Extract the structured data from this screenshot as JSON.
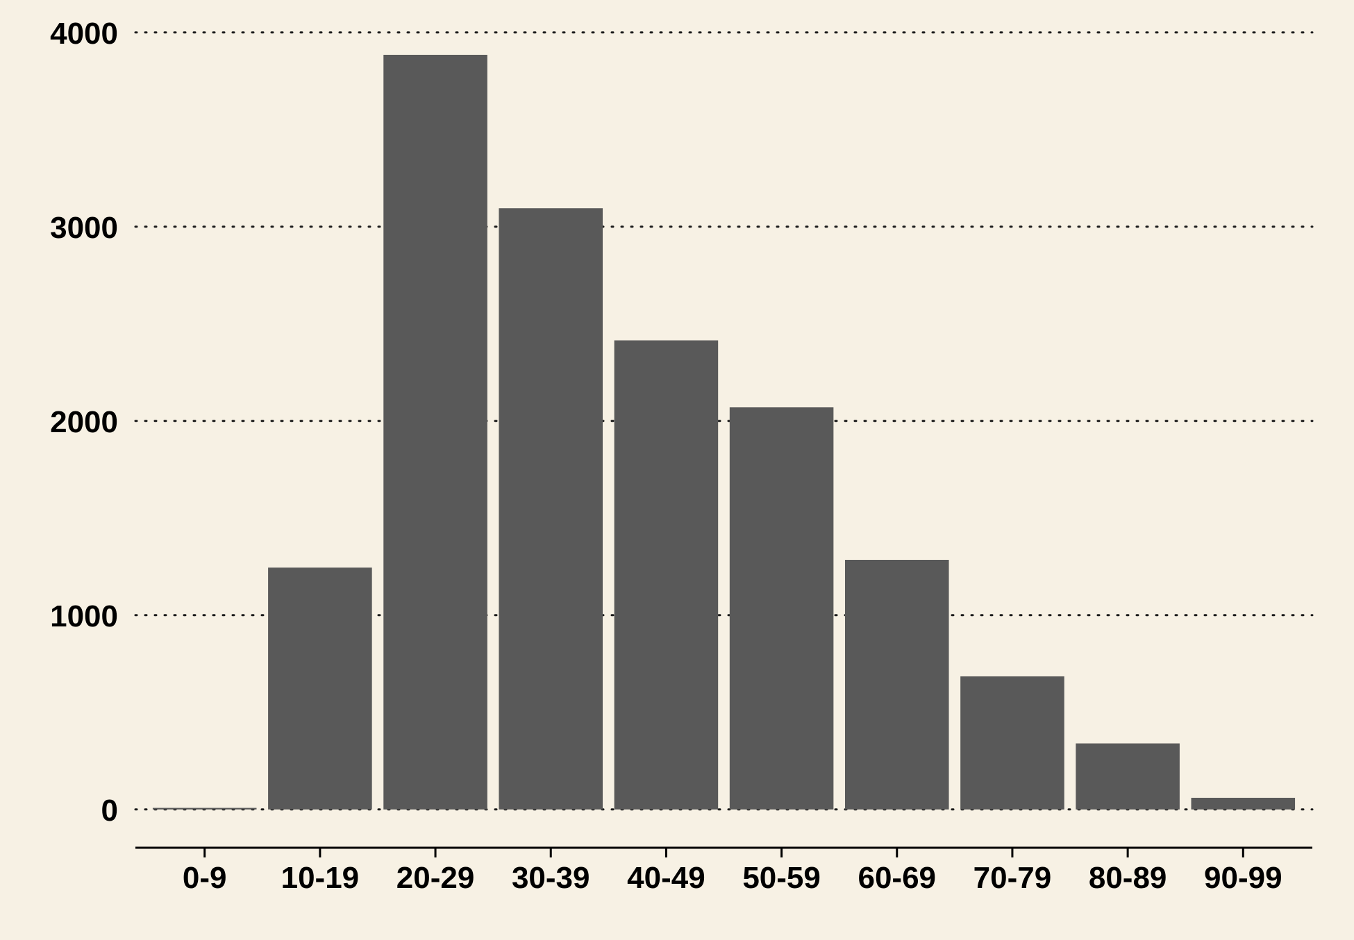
{
  "chart_data": {
    "type": "bar",
    "title": "",
    "xlabel": "",
    "ylabel": "",
    "categories": [
      "0-9",
      "10-19",
      "20-29",
      "30-39",
      "40-49",
      "50-59",
      "60-69",
      "70-79",
      "80-89",
      "90-99"
    ],
    "values": [
      8,
      1245,
      3885,
      3095,
      2415,
      2070,
      1285,
      685,
      340,
      60
    ],
    "ylim": [
      -190,
      4060
    ],
    "yticks": [
      0,
      1000,
      2000,
      3000,
      4000
    ],
    "ytick_labels": [
      "0",
      "1000",
      "2000",
      "3000",
      "4000"
    ],
    "grid": "horizontal dotted",
    "legend": "none",
    "colors": {
      "background": "#f7f1e4",
      "bar": "#595959",
      "grid": "#1a1a1a",
      "axis": "#000000",
      "text": "#000000"
    }
  }
}
